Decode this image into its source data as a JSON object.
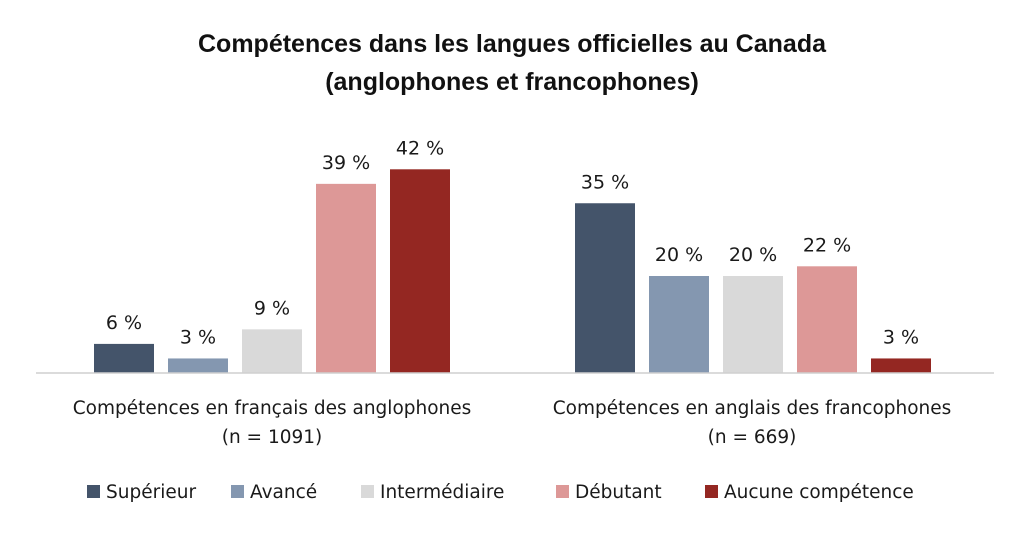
{
  "chart_data": {
    "type": "bar",
    "title": [
      "Compétences dans les langues officielles au Canada",
      "(anglophones et francophones)"
    ],
    "groups": [
      {
        "label": "Compétences en français des anglophones",
        "sublabel": "(n = 1091)",
        "values": [
          6,
          3,
          9,
          39,
          42
        ],
        "value_labels": [
          "6 %",
          "3 %",
          "9 %",
          "39 %",
          "42 %"
        ]
      },
      {
        "label": "Compétences en anglais des francophones",
        "sublabel": "(n = 669)",
        "values": [
          35,
          20,
          20,
          22,
          3
        ],
        "value_labels": [
          "35 %",
          "20 %",
          "20 %",
          "22 %",
          "3 %"
        ]
      }
    ],
    "series": [
      {
        "name": "Supérieur",
        "color": "#44546a"
      },
      {
        "name": "Avancé",
        "color": "#8497b0"
      },
      {
        "name": "Intermédiaire",
        "color": "#d9d9d9"
      },
      {
        "name": "Débutant",
        "color": "#dd9897"
      },
      {
        "name": "Aucune compétence",
        "color": "#942722"
      }
    ],
    "ylim": [
      0,
      50
    ],
    "grid": false,
    "legend_position": "bottom"
  }
}
